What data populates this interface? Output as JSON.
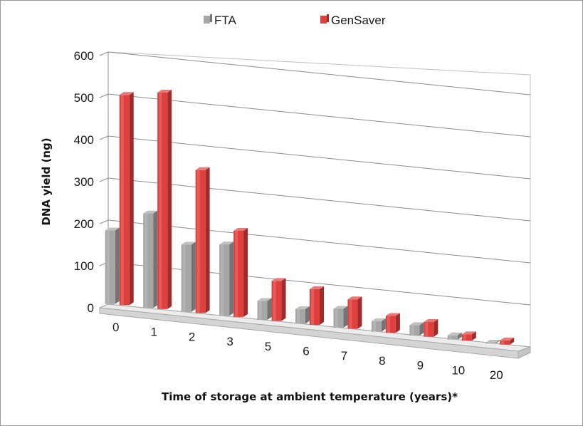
{
  "chart_data": {
    "type": "bar",
    "variant": "3d-clustered-column",
    "categories": [
      "0",
      "1",
      "2",
      "3",
      "5",
      "6",
      "7",
      "8",
      "9",
      "10",
      "20"
    ],
    "series": [
      {
        "name": "FTA",
        "color": "#a6a6a6",
        "values": [
          175,
          225,
          160,
          170,
          45,
          35,
          45,
          25,
          25,
          10,
          2
        ]
      },
      {
        "name": "GenSaver",
        "color": "#e0403d",
        "values": [
          500,
          515,
          340,
          205,
          95,
          85,
          70,
          40,
          35,
          15,
          10
        ]
      }
    ],
    "xlabel": "Time of storage at ambient temperature  (years)*",
    "ylabel": "DNA yield (ng)",
    "ylim": [
      0,
      600
    ],
    "yticks": [
      0,
      100,
      200,
      300,
      400,
      500,
      600
    ],
    "grid": true,
    "legend_position": "top"
  }
}
